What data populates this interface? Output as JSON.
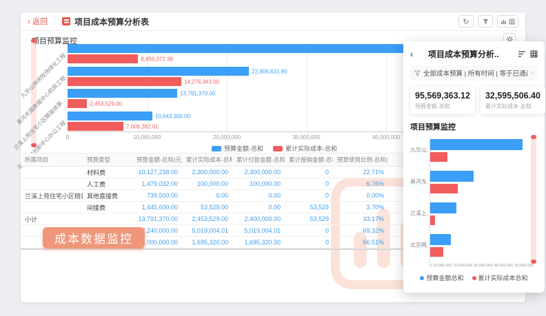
{
  "colors": {
    "blue": "#3b9ef7",
    "red": "#f15c5c",
    "badge": "#f0977b",
    "accent": "#e5574d"
  },
  "window": {
    "back_label": "返回",
    "title": "项目成本预算分析表",
    "section_title": "项目预算监控",
    "toolbar_icons": [
      "refresh-icon",
      "filter-icon",
      "chart-icon",
      "grid-icon",
      "gear-icon"
    ]
  },
  "chart_data": {
    "type": "bar",
    "title": "项目预算监控",
    "categories": [
      "九华山休闲牧场绿化工程",
      "黄河东路数据中心机房工程",
      "兰溪上苑住宅小区精装修第...",
      "北京两港创新中心办公工程"
    ],
    "series": [
      {
        "name": "预算金额-总和",
        "values": [
          48328061.32,
          22806631.8,
          13791370.0,
          10643300.0
        ],
        "labels": [
          "",
          "22,806,631.80",
          "13,791,370.00",
          "10,643,300.00"
        ]
      },
      {
        "name": "累计实际成本-总和",
        "values": [
          8856372.38,
          14276343.0,
          2453529.0,
          7009262.01
        ],
        "labels": [
          "8,856,372.38",
          "14,276,343.00",
          "2,453,529.00",
          "7,009,262.01"
        ]
      }
    ],
    "x_ticks": [
      "0",
      "10,000,000",
      "20,000,000",
      "30,000,000",
      "40,000,000"
    ],
    "xlim": [
      0,
      57500000
    ],
    "legend_position": "bottom",
    "grid": true
  },
  "table": {
    "headers": [
      "所属项目",
      "预算类型",
      "预算金额-总和(元)",
      "累计实际成本-总和(元)",
      "累计付款金额-总和(元)",
      "累计报销金额-总和(元)",
      "预算使用比例-总和(%)"
    ],
    "rows": [
      [
        "",
        "材料费",
        "10,127,238.00",
        "2,300,000.00",
        "2,300,000.00",
        "0",
        "22.71%"
      ],
      [
        "",
        "人工费",
        "1,479,032.00",
        "100,000.00",
        "100,000.00",
        "0",
        "6.76%"
      ],
      [
        "兰溪上苑住宅小区精装修第...",
        "其他直接费",
        "739,500.00",
        "0.00",
        "0.00",
        "0",
        "0.00%"
      ],
      [
        "",
        "间接费",
        "1,445,600.00",
        "53,529.00",
        "0.00",
        "53,529",
        "3.70%"
      ],
      [
        "小计",
        "",
        "13,791,370.00",
        "2,453,529.00",
        "2,400,000.00",
        "53,529",
        "33.17%"
      ],
      [
        "",
        "材料费",
        "7,240,000.00",
        "5,019,004.01",
        "5,019,004.01",
        "0",
        "69.32%"
      ],
      [
        "",
        "",
        "3,000,000.00",
        "1,695,320.00",
        "1,695,320.00",
        "0",
        "56.51%"
      ]
    ]
  },
  "badge": {
    "label": "成本数据监控"
  },
  "panel": {
    "title": "项目成本预算分析..",
    "filter_text": "全部成本预算 | 所有时间 | 等于已通过",
    "filter_chevron": "›",
    "stats": [
      {
        "value": "95,569,363.12",
        "label": "预算金额·总和"
      },
      {
        "value": "32,595,506.40",
        "label": "累计实际成本·总和"
      }
    ],
    "section_title": "项目预算监控",
    "chart": {
      "type": "bar",
      "categories": [
        "九华山..",
        "黄河东..",
        "兰溪上..",
        "北京两.."
      ],
      "series": [
        {
          "name": "预算金额总和",
          "values": [
            48328061.32,
            22806631.8,
            13791370.0,
            10643300.0
          ]
        },
        {
          "name": "累计实际成本总和",
          "values": [
            8856372.38,
            14276343.0,
            2453529.0,
            7009262.01
          ]
        }
      ],
      "x_ticks": [
        "0",
        "10,000,000",
        "20,000,000",
        "30,000,000",
        "40,000,000",
        "50,000,000"
      ],
      "xlim": [
        0,
        50000000
      ],
      "legend_position": "bottom"
    }
  }
}
